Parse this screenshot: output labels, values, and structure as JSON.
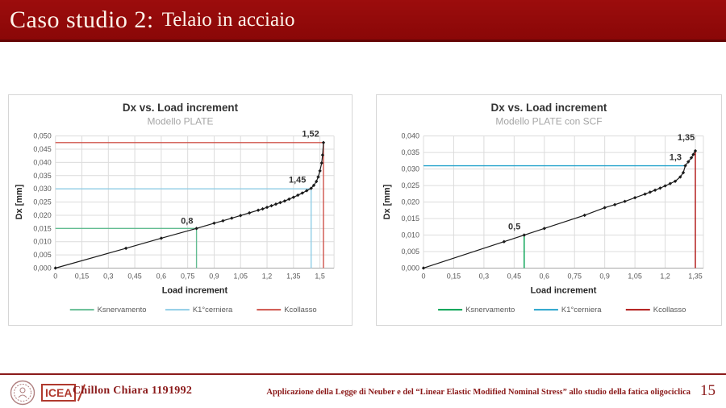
{
  "header": {
    "title": "Caso studio 2:",
    "subtitle": "Telaio in acciaio",
    "bar_color": "#8f0a0a"
  },
  "chart_data": [
    {
      "type": "line",
      "title": "Dx vs. Load increment",
      "subtitle": "Modello PLATE",
      "xlabel": "Load increment",
      "ylabel": "Dx [mm]",
      "xlim": [
        0,
        1.58
      ],
      "ylim": [
        0,
        0.05
      ],
      "grid": true,
      "legend_position": "bottom",
      "xtick_values": [
        0,
        0.15,
        0.3,
        0.45,
        0.6,
        0.75,
        0.9,
        1.05,
        1.2,
        1.35,
        1.5
      ],
      "xtick_labels": [
        "0",
        "0,15",
        "0,3",
        "0,45",
        "0,6",
        "0,75",
        "0,9",
        "1,05",
        "1,2",
        "1,35",
        "1,5"
      ],
      "ytick_values": [
        0,
        0.005,
        0.01,
        0.015,
        0.02,
        0.025,
        0.03,
        0.035,
        0.04,
        0.045,
        0.05
      ],
      "ytick_labels": [
        "0,000",
        "0,005",
        "0,010",
        "0,015",
        "0,020",
        "0,025",
        "0,030",
        "0,035",
        "0,040",
        "0,045",
        "0,050"
      ],
      "series": [
        {
          "name": "Dx",
          "color": "#1a1a1a",
          "points": [
            [
              0,
              0
            ],
            [
              0.4,
              0.0075
            ],
            [
              0.6,
              0.0113
            ],
            [
              0.8,
              0.015
            ],
            [
              0.9,
              0.017
            ],
            [
              0.95,
              0.0179
            ],
            [
              1.0,
              0.0189
            ],
            [
              1.05,
              0.0199
            ],
            [
              1.1,
              0.0209
            ],
            [
              1.15,
              0.0219
            ],
            [
              1.175,
              0.0224
            ],
            [
              1.2,
              0.023
            ],
            [
              1.225,
              0.0236
            ],
            [
              1.25,
              0.0242
            ],
            [
              1.275,
              0.0248
            ],
            [
              1.3,
              0.0254
            ],
            [
              1.325,
              0.0261
            ],
            [
              1.35,
              0.0268
            ],
            [
              1.375,
              0.0276
            ],
            [
              1.4,
              0.0284
            ],
            [
              1.425,
              0.0293
            ],
            [
              1.45,
              0.0302
            ],
            [
              1.465,
              0.0313
            ],
            [
              1.48,
              0.0328
            ],
            [
              1.49,
              0.0345
            ],
            [
              1.5,
              0.0368
            ],
            [
              1.51,
              0.0398
            ],
            [
              1.515,
              0.0428
            ],
            [
              1.52,
              0.0475
            ]
          ]
        }
      ],
      "ref_lines": [
        {
          "name": "Ksnervamento",
          "color": "#63bd92",
          "label": "0,8",
          "label_at": [
            0.79,
            0.0162
          ],
          "h": {
            "y": 0.015,
            "x0": 0,
            "x1": 0.8
          },
          "v": {
            "x": 0.8,
            "y0": 0,
            "y1": 0.015
          }
        },
        {
          "name": "K1°cerniera",
          "color": "#8fcde6",
          "label": "1,45",
          "label_at": [
            1.43,
            0.0318
          ],
          "h": {
            "y": 0.03,
            "x0": 0,
            "x1": 1.45
          },
          "v": {
            "x": 1.45,
            "y0": 0,
            "y1": 0.03
          }
        },
        {
          "name": "Kcollasso",
          "color": "#cf524a",
          "label": "1,52",
          "label_at": [
            1.505,
            0.0492
          ],
          "h": {
            "y": 0.0475,
            "x0": 0,
            "x1": 1.52
          },
          "v": {
            "x": 1.52,
            "y0": 0,
            "y1": 0.0475
          }
        }
      ],
      "legend": [
        {
          "label": "Ksnervamento",
          "color": "#63bd92"
        },
        {
          "label": "K1°cerniera",
          "color": "#8fcde6"
        },
        {
          "label": "Kcollasso",
          "color": "#cf524a"
        }
      ]
    },
    {
      "type": "line",
      "title": "Dx vs. Load increment",
      "subtitle": "Modello PLATE con SCF",
      "xlabel": "Load increment",
      "ylabel": "Dx [mm]",
      "xlim": [
        0,
        1.39
      ],
      "ylim": [
        0,
        0.04
      ],
      "grid": true,
      "legend_position": "bottom",
      "xtick_values": [
        0,
        0.15,
        0.3,
        0.45,
        0.6,
        0.75,
        0.9,
        1.05,
        1.2,
        1.35
      ],
      "xtick_labels": [
        "0",
        "0,15",
        "0,3",
        "0,45",
        "0,6",
        "0,75",
        "0,9",
        "1,05",
        "1,2",
        "1,35"
      ],
      "ytick_values": [
        0,
        0.005,
        0.01,
        0.015,
        0.02,
        0.025,
        0.03,
        0.035,
        0.04
      ],
      "ytick_labels": [
        "0,000",
        "0,005",
        "0,010",
        "0,015",
        "0,020",
        "0,025",
        "0,030",
        "0,035",
        "0,040"
      ],
      "series": [
        {
          "name": "Dx",
          "color": "#1a1a1a",
          "points": [
            [
              0,
              0
            ],
            [
              0.4,
              0.008
            ],
            [
              0.5,
              0.01
            ],
            [
              0.6,
              0.012
            ],
            [
              0.8,
              0.016
            ],
            [
              0.9,
              0.0183
            ],
            [
              0.95,
              0.0192
            ],
            [
              1.0,
              0.0202
            ],
            [
              1.05,
              0.0213
            ],
            [
              1.1,
              0.0224
            ],
            [
              1.125,
              0.023
            ],
            [
              1.15,
              0.0236
            ],
            [
              1.175,
              0.0242
            ],
            [
              1.2,
              0.0249
            ],
            [
              1.225,
              0.0256
            ],
            [
              1.25,
              0.0263
            ],
            [
              1.275,
              0.0276
            ],
            [
              1.29,
              0.0289
            ],
            [
              1.3,
              0.031
            ],
            [
              1.315,
              0.0322
            ],
            [
              1.33,
              0.0334
            ],
            [
              1.34,
              0.0344
            ],
            [
              1.35,
              0.0355
            ]
          ]
        }
      ],
      "ref_lines": [
        {
          "name": "Ksnervamento",
          "color": "#00a14f",
          "label": "0,5",
          "label_at": [
            0.49,
            0.0112
          ],
          "v": {
            "x": 0.5,
            "y0": 0,
            "y1": 0.01
          }
        },
        {
          "name": "K1°cerniera",
          "color": "#26a3cc",
          "label": "1,3",
          "label_at": [
            1.29,
            0.0322
          ],
          "h": {
            "y": 0.031,
            "x0": 0,
            "x1": 1.3
          }
        },
        {
          "name": "Kcollasso",
          "color": "#b01412",
          "label": "1,35",
          "label_at": [
            1.355,
            0.0382
          ],
          "v": {
            "x": 1.35,
            "y0": 0,
            "y1": 0.0355
          }
        }
      ],
      "legend": [
        {
          "label": "Ksnervamento",
          "color": "#00a14f"
        },
        {
          "label": "K1°cerniera",
          "color": "#26a3cc"
        },
        {
          "label": "Kcollasso",
          "color": "#b01412"
        }
      ]
    }
  ],
  "footer": {
    "logo_text": "ICEA",
    "author": "Chillon Chiara 1191992",
    "thesis_title": "Applicazione della Legge di Neuber e del “Linear Elastic Modified Nominal Stress” allo studio della fatica oligociclica",
    "page_number": "15",
    "accent_color": "#8b1a1a"
  }
}
